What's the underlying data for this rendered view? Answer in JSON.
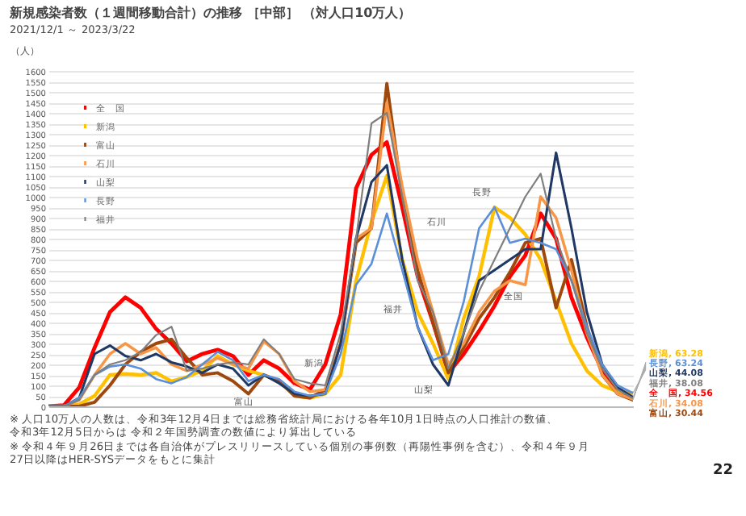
{
  "chart_data": {
    "type": "line",
    "title": "新規感染者数（１週間移動合計）の推移 ［中部］ （対人口10万人）",
    "subtitle": "2021/12/1 ～ 2023/3/22",
    "ylabel": "（人）",
    "categories": [
      null,
      null,
      null,
      null,
      null,
      null,
      null,
      null,
      null,
      null,
      null,
      null,
      null,
      null,
      null,
      null,
      null,
      null,
      null,
      null,
      null,
      null,
      null,
      null,
      null,
      null,
      null,
      null,
      null,
      null,
      null,
      null,
      null,
      null,
      null,
      null,
      null,
      null,
      null
    ],
    "ylim": [
      0,
      1600
    ],
    "yticks": [
      0,
      50,
      100,
      150,
      200,
      250,
      300,
      350,
      400,
      450,
      500,
      550,
      600,
      650,
      700,
      750,
      800,
      850,
      900,
      950,
      1000,
      1050,
      1100,
      1150,
      1200,
      1250,
      1300,
      1350,
      1400,
      1450,
      1500,
      1550,
      1600
    ],
    "grid": "y",
    "legend": "top left",
    "tick_labels": "y",
    "series": [
      {
        "name": "全　国",
        "color": "#ff0000",
        "values": [
          0,
          5,
          90,
          280,
          450,
          520,
          470,
          370,
          300,
          215,
          250,
          270,
          240,
          150,
          220,
          180,
          110,
          80,
          200,
          440,
          1040,
          1200,
          1260,
          950,
          620,
          400,
          160,
          250,
          360,
          480,
          620,
          720,
          920,
          800,
          520,
          330,
          170,
          80,
          34.56
        ],
        "value_labels": [
          null,
          null,
          null,
          null,
          null,
          null,
          null,
          null,
          null,
          null,
          null,
          null,
          null,
          null,
          null,
          null,
          null,
          null,
          null,
          null,
          null,
          null,
          null,
          null,
          null,
          null,
          null,
          null,
          null,
          null,
          null,
          null,
          null,
          null,
          null,
          null,
          null,
          null,
          "全　国, 34.56"
        ]
      },
      {
        "name": "新潟",
        "color": "#ffc000",
        "values": [
          0,
          0,
          10,
          50,
          150,
          155,
          150,
          160,
          120,
          140,
          170,
          240,
          200,
          170,
          150,
          120,
          50,
          40,
          60,
          150,
          600,
          880,
          1100,
          700,
          450,
          300,
          130,
          420,
          620,
          950,
          900,
          820,
          700,
          500,
          300,
          170,
          100,
          70,
          63.28
        ],
        "value_labels": [
          null,
          null,
          null,
          null,
          null,
          null,
          null,
          null,
          null,
          null,
          null,
          null,
          null,
          null,
          null,
          null,
          null,
          null,
          null,
          null,
          null,
          null,
          null,
          null,
          null,
          null,
          null,
          null,
          null,
          null,
          null,
          null,
          null,
          null,
          null,
          null,
          null,
          null,
          "新潟, 63.28"
        ]
      },
      {
        "name": "富山",
        "color": "#9e480e",
        "values": [
          0,
          0,
          0,
          20,
          100,
          200,
          260,
          300,
          320,
          230,
          150,
          160,
          120,
          60,
          150,
          120,
          50,
          40,
          80,
          300,
          780,
          850,
          1540,
          1000,
          650,
          400,
          160,
          280,
          420,
          520,
          640,
          780,
          800,
          470,
          700,
          380,
          150,
          60,
          30.44
        ],
        "value_labels": [
          null,
          null,
          null,
          null,
          null,
          null,
          null,
          null,
          null,
          null,
          null,
          null,
          null,
          null,
          null,
          null,
          null,
          null,
          null,
          null,
          null,
          null,
          null,
          null,
          null,
          null,
          null,
          null,
          null,
          null,
          null,
          null,
          null,
          null,
          null,
          null,
          null,
          null,
          "富山, 30.44"
        ]
      },
      {
        "name": "石川",
        "color": "#f79646",
        "values": [
          0,
          0,
          30,
          150,
          250,
          300,
          250,
          280,
          200,
          170,
          200,
          230,
          200,
          180,
          310,
          250,
          120,
          70,
          80,
          300,
          800,
          850,
          1450,
          1050,
          700,
          450,
          200,
          300,
          450,
          550,
          600,
          580,
          1000,
          900,
          650,
          350,
          150,
          60,
          34.08
        ],
        "value_labels": [
          null,
          null,
          null,
          null,
          null,
          null,
          null,
          null,
          null,
          null,
          null,
          null,
          null,
          null,
          null,
          null,
          null,
          null,
          null,
          null,
          null,
          null,
          null,
          null,
          null,
          null,
          null,
          null,
          null,
          null,
          null,
          null,
          null,
          null,
          null,
          null,
          null,
          null,
          "石川, 34.08"
        ]
      },
      {
        "name": "山梨",
        "color": "#203864",
        "values": [
          0,
          0,
          40,
          250,
          290,
          240,
          220,
          250,
          210,
          190,
          160,
          200,
          180,
          100,
          150,
          110,
          60,
          50,
          60,
          300,
          800,
          1070,
          1150,
          700,
          380,
          200,
          100,
          350,
          600,
          650,
          700,
          750,
          750,
          1210,
          850,
          450,
          200,
          90,
          44.08
        ],
        "value_labels": [
          null,
          null,
          null,
          null,
          null,
          null,
          null,
          null,
          null,
          null,
          null,
          null,
          null,
          null,
          null,
          null,
          null,
          null,
          null,
          null,
          null,
          null,
          null,
          null,
          null,
          null,
          null,
          null,
          null,
          null,
          null,
          null,
          null,
          null,
          null,
          null,
          null,
          null,
          "山梨, 44.08"
        ]
      },
      {
        "name": "長野",
        "color": "#5b8fd8",
        "values": [
          0,
          0,
          40,
          150,
          190,
          200,
          180,
          130,
          110,
          140,
          200,
          260,
          220,
          120,
          150,
          130,
          70,
          50,
          60,
          250,
          580,
          680,
          920,
          650,
          380,
          220,
          250,
          500,
          850,
          950,
          780,
          800,
          780,
          750,
          600,
          380,
          200,
          100,
          63.24
        ],
        "value_labels": [
          null,
          null,
          null,
          null,
          null,
          null,
          null,
          null,
          null,
          null,
          null,
          null,
          null,
          null,
          null,
          null,
          null,
          null,
          null,
          null,
          null,
          null,
          null,
          null,
          null,
          null,
          null,
          null,
          null,
          null,
          null,
          null,
          null,
          null,
          null,
          null,
          null,
          null,
          "長野, 63.24"
        ]
      },
      {
        "name": "福井",
        "color": "#7f7f7f",
        "values": [
          0,
          0,
          30,
          150,
          200,
          220,
          260,
          340,
          380,
          170,
          180,
          200,
          210,
          200,
          320,
          250,
          130,
          110,
          100,
          350,
          800,
          1350,
          1400,
          1000,
          600,
          450,
          180,
          350,
          550,
          700,
          850,
          1000,
          1110,
          800,
          600,
          350,
          180,
          80,
          38.08
        ],
        "value_labels": [
          null,
          null,
          null,
          null,
          null,
          null,
          null,
          null,
          null,
          null,
          null,
          null,
          null,
          null,
          null,
          null,
          null,
          null,
          null,
          null,
          null,
          null,
          null,
          null,
          null,
          null,
          null,
          null,
          null,
          null,
          null,
          null,
          null,
          null,
          null,
          null,
          null,
          null,
          "福井, 38.08"
        ]
      }
    ],
    "annotations": [
      "富山",
      "新潟",
      "石川",
      "福井",
      "山梨",
      "長野",
      "全国",
      "※ 人口10万人の人数は、令和3年12月4日までは総務省統計局における各年10月1日時点の人口推計の数値、令和3年12月5日からは 令和２年国勢調査の数値により算出している",
      "※ 令和４年９月26日までは各自治体がプレスリリースしている個別の事例数（再陽性事例を含む）、令和４年９月27日以降はHER-SYSデータをもとに集計",
      "22"
    ]
  }
}
